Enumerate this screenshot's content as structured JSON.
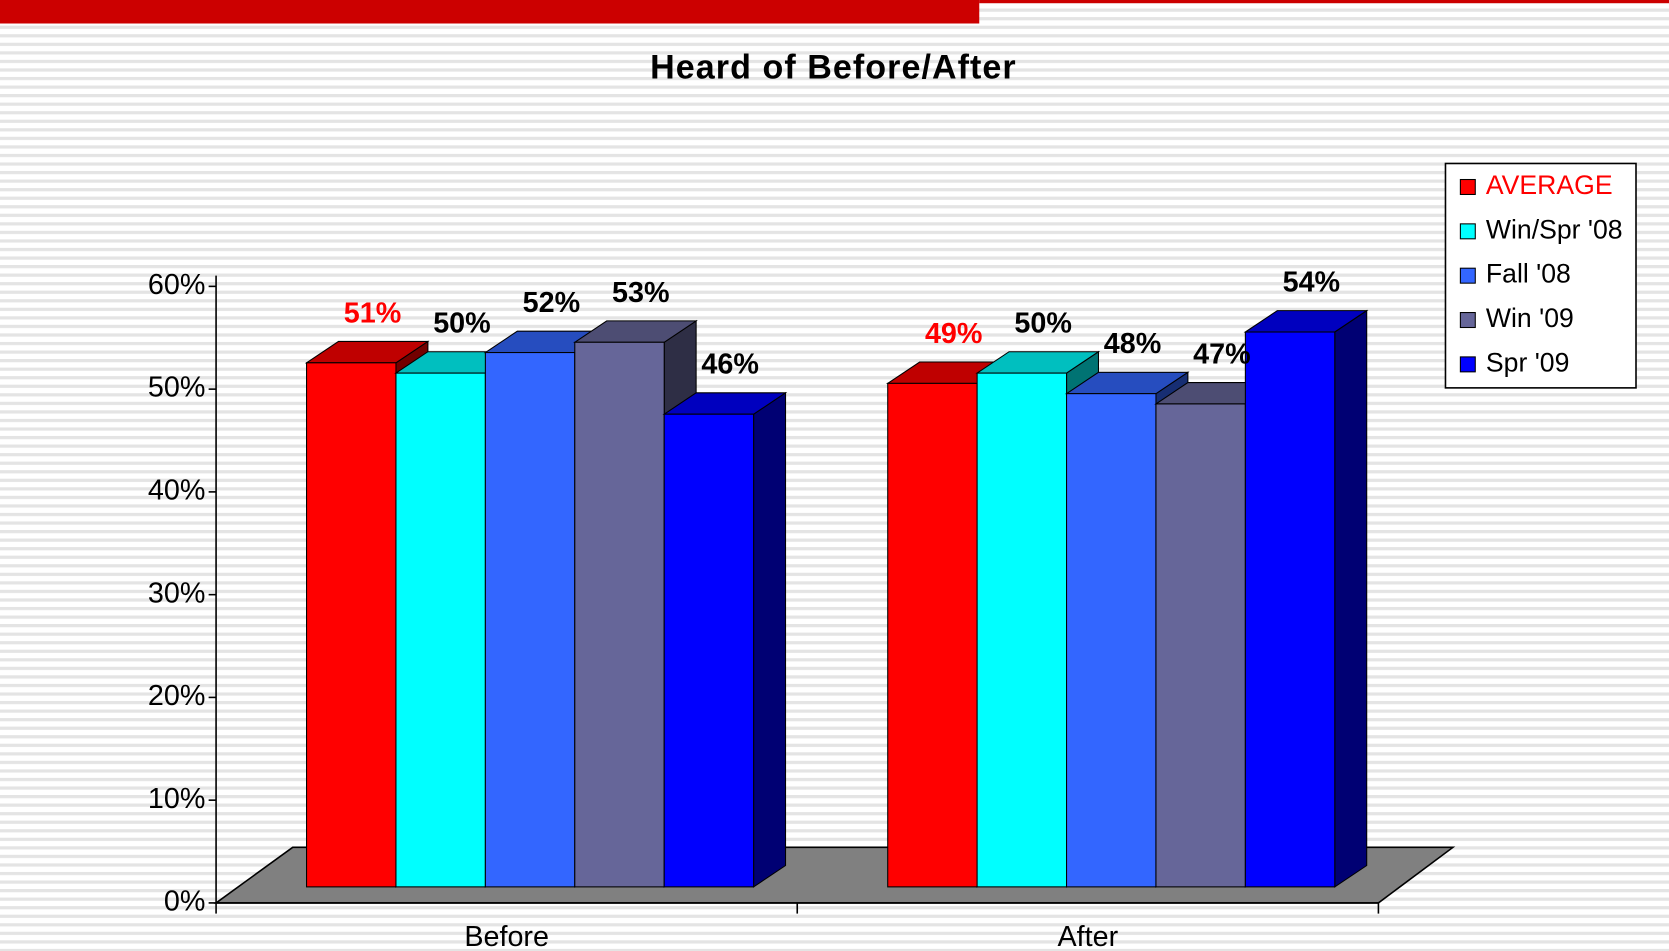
{
  "chart_data": {
    "type": "bar3d",
    "title": "Heard of Before/After",
    "categories": [
      "Before",
      "After"
    ],
    "series": [
      {
        "name": "AVERAGE",
        "color": "#ff0000",
        "values": [
          51,
          49
        ],
        "value_labels": [
          "51%",
          "49%"
        ]
      },
      {
        "name": "Win/Spr '08",
        "color": "#00ffff",
        "values": [
          50,
          50
        ],
        "value_labels": [
          "50%",
          "50%"
        ]
      },
      {
        "name": "Fall '08",
        "color": "#3366ff",
        "values": [
          52,
          48
        ],
        "value_labels": [
          "52%",
          "48%"
        ]
      },
      {
        "name": "Win '09",
        "color": "#666699",
        "values": [
          53,
          47
        ],
        "value_labels": [
          "53%",
          "47%"
        ]
      },
      {
        "name": "Spr '09",
        "color": "#0000ff",
        "values": [
          46,
          54
        ],
        "value_labels": [
          "46%",
          "54%"
        ]
      }
    ],
    "ylim": [
      0,
      60
    ],
    "yticks": [
      {
        "value": 0,
        "label": "0%"
      },
      {
        "value": 10,
        "label": "10%"
      },
      {
        "value": 20,
        "label": "20%"
      },
      {
        "value": 30,
        "label": "30%"
      },
      {
        "value": 40,
        "label": "40%"
      },
      {
        "value": 50,
        "label": "50%"
      },
      {
        "value": 60,
        "label": "60%"
      }
    ],
    "legend": "right"
  }
}
